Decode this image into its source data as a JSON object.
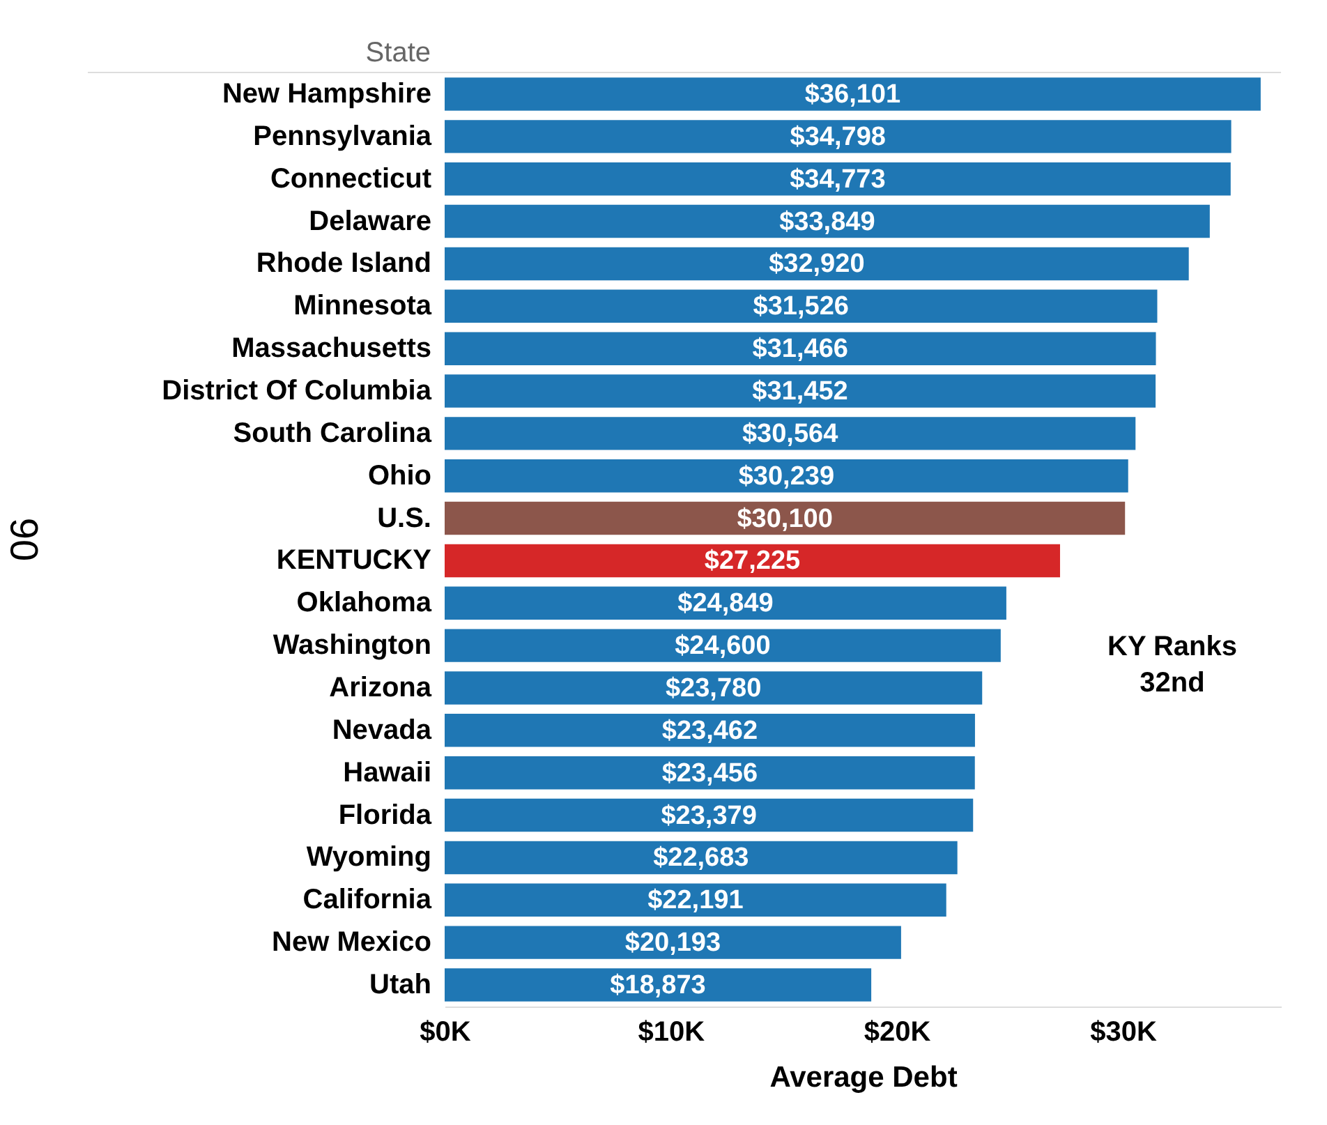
{
  "chart_data": {
    "type": "bar",
    "orientation": "horizontal",
    "ylabel": "State",
    "xlabel": "Average Debt",
    "categories": [
      "New Hampshire",
      "Pennsylvania",
      "Connecticut",
      "Delaware",
      "Rhode Island",
      "Minnesota",
      "Massachusetts",
      "District Of Columbia",
      "South Carolina",
      "Ohio",
      "U.S.",
      "KENTUCKY",
      "Oklahoma",
      "Washington",
      "Arizona",
      "Nevada",
      "Hawaii",
      "Florida",
      "Wyoming",
      "California",
      "New Mexico",
      "Utah"
    ],
    "values": [
      36101,
      34798,
      34773,
      33849,
      32920,
      31526,
      31466,
      31452,
      30564,
      30239,
      30100,
      27225,
      24849,
      24600,
      23780,
      23462,
      23456,
      23379,
      22683,
      22191,
      20193,
      18873
    ],
    "value_labels": [
      "$36,101",
      "$34,798",
      "$34,773",
      "$33,849",
      "$32,920",
      "$31,526",
      "$31,466",
      "$31,452",
      "$30,564",
      "$30,239",
      "$30,100",
      "$27,225",
      "$24,849",
      "$24,600",
      "$23,780",
      "$23,462",
      "$23,456",
      "$23,379",
      "$22,683",
      "$22,191",
      "$20,193",
      "$18,873"
    ],
    "colors": [
      "#1f77b4",
      "#1f77b4",
      "#1f77b4",
      "#1f77b4",
      "#1f77b4",
      "#1f77b4",
      "#1f77b4",
      "#1f77b4",
      "#1f77b4",
      "#1f77b4",
      "#8c564b",
      "#d62728",
      "#1f77b4",
      "#1f77b4",
      "#1f77b4",
      "#1f77b4",
      "#1f77b4",
      "#1f77b4",
      "#1f77b4",
      "#1f77b4",
      "#1f77b4",
      "#1f77b4"
    ],
    "xlim": [
      0,
      37000
    ],
    "xticks": [
      {
        "value": 0,
        "label": "$0K"
      },
      {
        "value": 10000,
        "label": "$10K"
      },
      {
        "value": 20000,
        "label": "$20K"
      },
      {
        "value": 30000,
        "label": "$30K"
      }
    ],
    "grid": false,
    "annotations": [
      "06",
      "KY Ranks\n32nd"
    ]
  }
}
